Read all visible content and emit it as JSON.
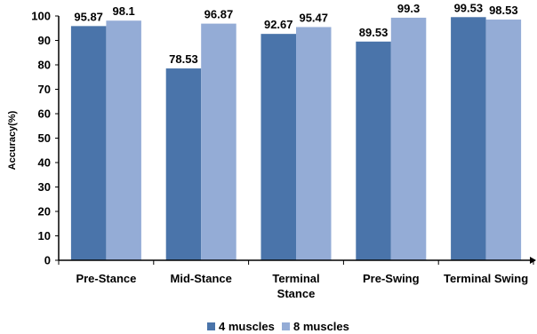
{
  "chart_data": {
    "type": "bar",
    "categories": [
      [
        "Pre-Stance"
      ],
      [
        "Mid-Stance"
      ],
      [
        "Terminal",
        "Stance"
      ],
      [
        "Pre-Swing"
      ],
      [
        "Terminal Swing"
      ]
    ],
    "series": [
      {
        "name": "4 muscles",
        "color": "#4a74aa",
        "values": [
          95.87,
          78.53,
          92.67,
          89.53,
          99.53
        ],
        "labels": [
          "95.87",
          "78.53",
          "92.67",
          "89.53",
          "99.53"
        ]
      },
      {
        "name": "8 muscles",
        "color": "#94acd6",
        "values": [
          98.1,
          96.87,
          95.47,
          99.3,
          98.53
        ],
        "labels": [
          "98.1",
          "96.87",
          "95.47",
          "99.3",
          "98.53"
        ]
      }
    ],
    "ylabel": "Accuracy(%)",
    "xlabel": "",
    "ylim": [
      0,
      100
    ],
    "yticks": [
      0,
      10,
      20,
      30,
      40,
      50,
      60,
      70,
      80,
      90,
      100
    ],
    "grid": false,
    "legend_position": "bottom"
  }
}
